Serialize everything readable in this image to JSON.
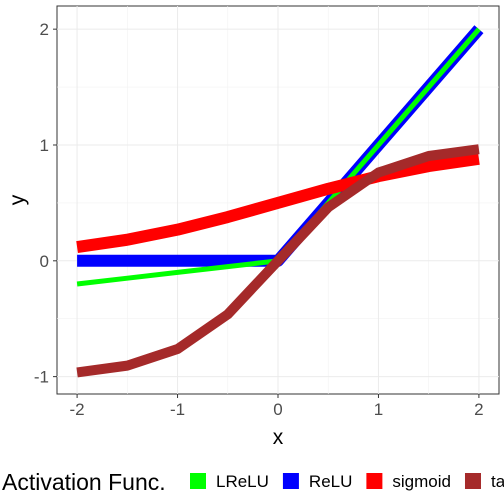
{
  "chart_data": {
    "type": "line",
    "title": "",
    "xlabel": "x",
    "ylabel": "y",
    "xlim": [
      -2.2,
      2.2
    ],
    "ylim": [
      -1.15,
      2.2
    ],
    "x_ticks": [
      -2,
      -1,
      0,
      1,
      2
    ],
    "y_ticks": [
      -1,
      0,
      1,
      2
    ],
    "x_tick_labels": [
      "-2",
      "-1",
      "0",
      "1",
      "2"
    ],
    "y_tick_labels": [
      "-1",
      "0",
      "1",
      "2"
    ],
    "grid": true,
    "legend_position": "bottom",
    "legend_title": "Activation Func.",
    "x": [
      -2,
      -1.5,
      -1,
      -0.5,
      0,
      0.5,
      1,
      1.5,
      2
    ],
    "series": [
      {
        "name": "LReLU",
        "color": "#00ff00",
        "values": [
          -0.2,
          -0.15,
          -0.1,
          -0.05,
          0,
          0.5,
          1,
          1.5,
          2
        ]
      },
      {
        "name": "ReLU",
        "color": "#0000ff",
        "values": [
          0,
          0,
          0,
          0,
          0,
          0.5,
          1,
          1.5,
          2
        ]
      },
      {
        "name": "sigmoid",
        "color": "#ff0000",
        "values": [
          0.119,
          0.182,
          0.269,
          0.378,
          0.5,
          0.622,
          0.731,
          0.818,
          0.881
        ]
      },
      {
        "name": "tanh",
        "color": "#a52a2a",
        "values": [
          -0.964,
          -0.905,
          -0.762,
          -0.462,
          0,
          0.462,
          0.762,
          0.905,
          0.964
        ]
      }
    ]
  }
}
